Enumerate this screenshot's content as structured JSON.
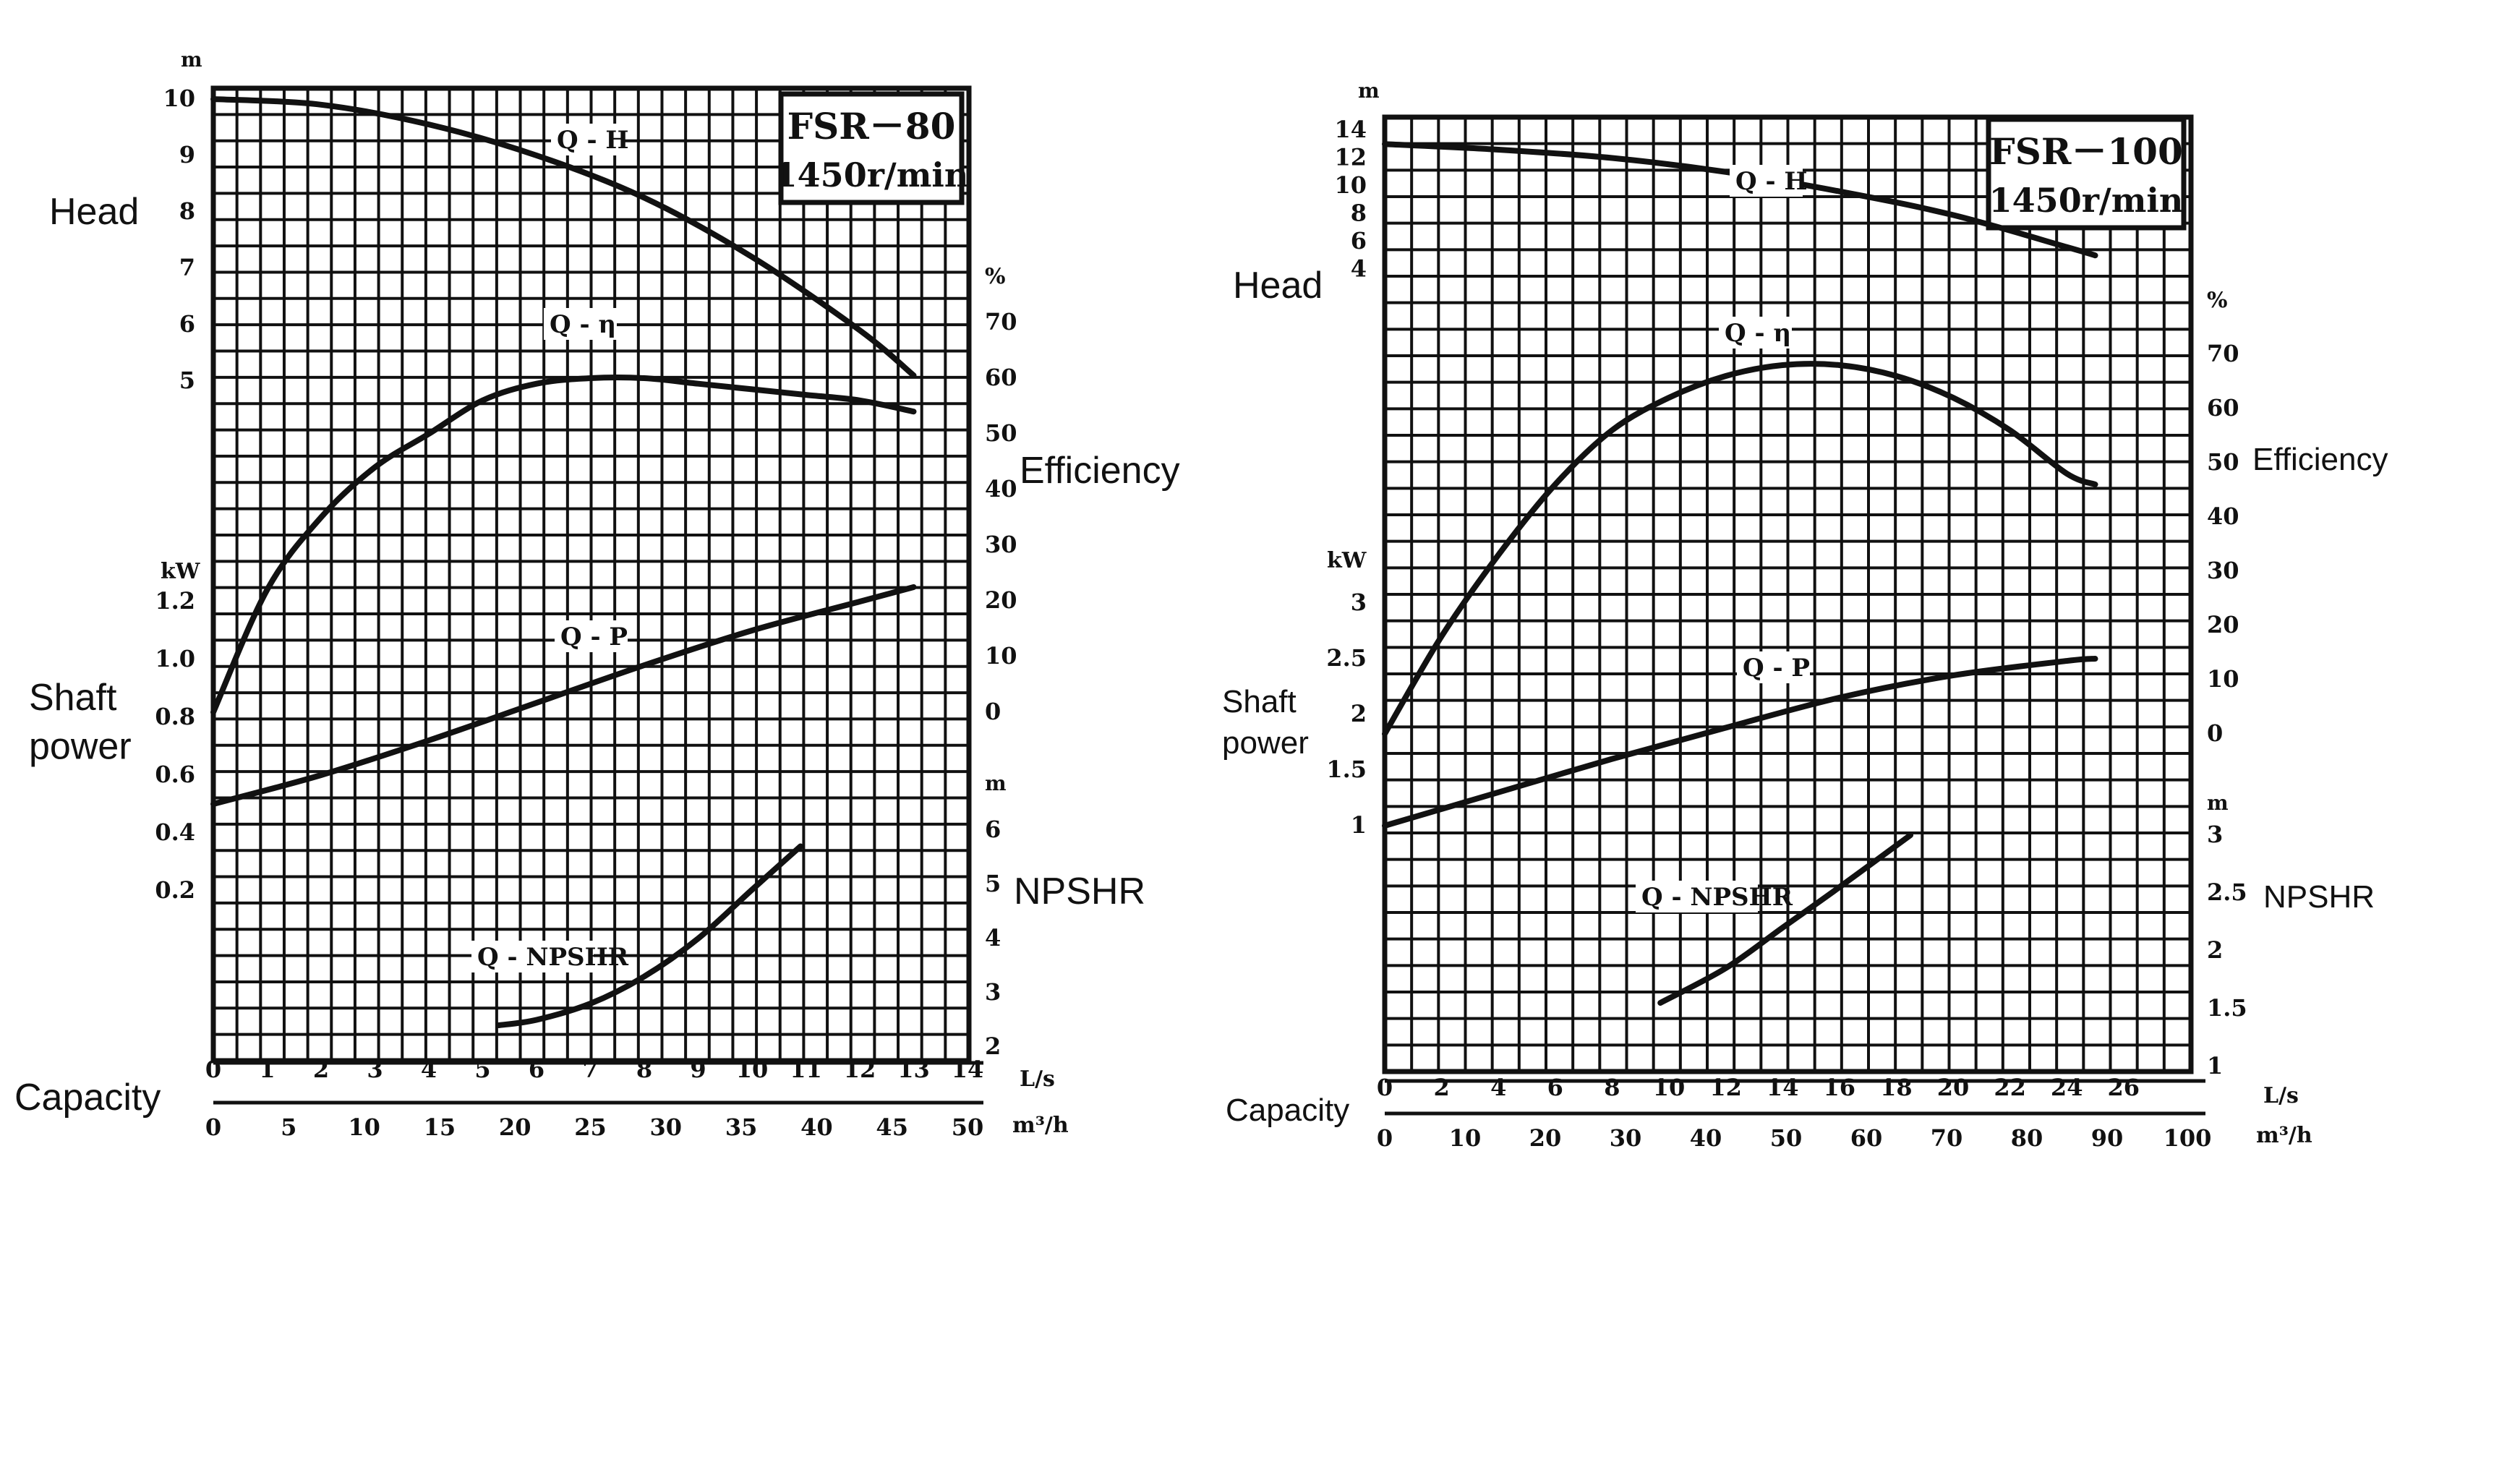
{
  "figure": {
    "background": "#ffffff",
    "ink": "#111111"
  },
  "chart_data": [
    {
      "type": "line",
      "model": "FSR－80",
      "speed": "1450r/min",
      "side_labels": {
        "head": "Head",
        "efficiency": "Efficiency",
        "shaft_power": "Shaft\npower",
        "npshr": "NPSHR",
        "capacity": "Capacity"
      },
      "units": {
        "head": "m",
        "power": "kW",
        "efficiency": "%",
        "npshr": "m",
        "flow_ls": "L/s",
        "flow_m3h": "m³/h"
      },
      "axes": {
        "x_ls": {
          "range": [
            0,
            14
          ],
          "ticks": [
            "0",
            "1",
            "2",
            "3",
            "4",
            "5",
            "6",
            "7",
            "8",
            "9",
            "10",
            "11",
            "12",
            "13",
            "14"
          ]
        },
        "x_m3h": {
          "ticks": [
            "0",
            "5",
            "10",
            "15",
            "20",
            "25",
            "30",
            "35",
            "40",
            "45",
            "50"
          ]
        },
        "head": {
          "ticks": [
            "10",
            "9",
            "8",
            "7",
            "6",
            "5"
          ]
        },
        "power": {
          "ticks": [
            "1.2",
            "1.0",
            "0.8",
            "0.6",
            "0.4",
            "0.2"
          ]
        },
        "efficiency": {
          "ticks": [
            "70",
            "60",
            "50",
            "40",
            "30",
            "20",
            "10",
            "0"
          ]
        },
        "npshr": {
          "ticks": [
            "6",
            "5",
            "4",
            "3",
            "2"
          ]
        }
      },
      "series": [
        {
          "name": "Q - H",
          "unit": "m",
          "points": [
            [
              0,
              10
            ],
            [
              2,
              9.9
            ],
            [
              4,
              9.55
            ],
            [
              6,
              9.0
            ],
            [
              8,
              8.25
            ],
            [
              10,
              7.2
            ],
            [
              12,
              5.9
            ],
            [
              13,
              5.1
            ]
          ]
        },
        {
          "name": "Q - η",
          "unit": "%",
          "points": [
            [
              0,
              0
            ],
            [
              1,
              22
            ],
            [
              2,
              35
            ],
            [
              3,
              44
            ],
            [
              4,
              50
            ],
            [
              5,
              56
            ],
            [
              6,
              59
            ],
            [
              7,
              60
            ],
            [
              8,
              60
            ],
            [
              9,
              59
            ],
            [
              10,
              58
            ],
            [
              11,
              57
            ],
            [
              12,
              56
            ],
            [
              13,
              54
            ]
          ]
        },
        {
          "name": "Q - P",
          "unit": "kW",
          "points": [
            [
              0,
              0.5
            ],
            [
              2,
              0.6
            ],
            [
              4,
              0.72
            ],
            [
              6,
              0.85
            ],
            [
              8,
              0.98
            ],
            [
              10,
              1.1
            ],
            [
              12,
              1.2
            ],
            [
              13,
              1.25
            ]
          ]
        },
        {
          "name": "Q - NPSHR",
          "unit": "m",
          "points": [
            [
              5.3,
              2.4
            ],
            [
              6,
              2.5
            ],
            [
              7,
              2.8
            ],
            [
              8,
              3.3
            ],
            [
              9,
              4.0
            ],
            [
              10,
              4.9
            ],
            [
              10.9,
              5.7
            ]
          ]
        }
      ]
    },
    {
      "type": "line",
      "model": "FSR－100",
      "speed": "1450r/min",
      "side_labels": {
        "head": "Head",
        "efficiency": "Efficiency",
        "shaft_power": "Shaft\npower",
        "npshr": "NPSHR",
        "capacity": "Capacity"
      },
      "units": {
        "head": "m",
        "power": "kW",
        "efficiency": "%",
        "npshr": "m",
        "flow_ls": "L/s",
        "flow_m3h": "m³/h"
      },
      "axes": {
        "x_ls": {
          "range": [
            0,
            26
          ],
          "ticks": [
            "0",
            "2",
            "4",
            "6",
            "8",
            "10",
            "12",
            "14",
            "16",
            "18",
            "20",
            "22",
            "24",
            "26"
          ]
        },
        "x_m3h": {
          "ticks": [
            "0",
            "10",
            "20",
            "30",
            "40",
            "50",
            "60",
            "70",
            "80",
            "90",
            "100"
          ]
        },
        "head": {
          "ticks": [
            "14",
            "12",
            "10",
            "8",
            "6",
            "4"
          ]
        },
        "power": {
          "ticks": [
            "3",
            "2.5",
            "2",
            "1.5",
            "1"
          ]
        },
        "efficiency": {
          "ticks": [
            "70",
            "60",
            "50",
            "40",
            "30",
            "20",
            "10",
            "0"
          ]
        },
        "npshr": {
          "ticks": [
            "3",
            "2.5",
            "2",
            "1.5",
            "1"
          ]
        }
      },
      "series": [
        {
          "name": "Q - H",
          "unit": "m",
          "points": [
            [
              0,
              13
            ],
            [
              4,
              12.6
            ],
            [
              8,
              12
            ],
            [
              12,
              11
            ],
            [
              16,
              9.6
            ],
            [
              20,
              7.9
            ],
            [
              24,
              5.6
            ],
            [
              25,
              5
            ]
          ]
        },
        {
          "name": "Q - η",
          "unit": "%",
          "points": [
            [
              0,
              0
            ],
            [
              2,
              18
            ],
            [
              4,
              33
            ],
            [
              6,
              46
            ],
            [
              8,
              56
            ],
            [
              10,
              62
            ],
            [
              12,
              66
            ],
            [
              14,
              68
            ],
            [
              16,
              68
            ],
            [
              18,
              66
            ],
            [
              20,
              62
            ],
            [
              22,
              56
            ],
            [
              24,
              48
            ],
            [
              25,
              46
            ]
          ]
        },
        {
          "name": "Q - P",
          "unit": "kW",
          "points": [
            [
              0,
              1
            ],
            [
              4,
              1.3
            ],
            [
              8,
              1.6
            ],
            [
              12,
              1.88
            ],
            [
              16,
              2.15
            ],
            [
              20,
              2.35
            ],
            [
              24,
              2.48
            ],
            [
              25,
              2.5
            ]
          ]
        },
        {
          "name": "Q - NPSHR",
          "unit": "m",
          "points": [
            [
              9.7,
              1.55
            ],
            [
              12,
              1.85
            ],
            [
              14,
              2.2
            ],
            [
              16,
              2.55
            ],
            [
              18.5,
              3.0
            ]
          ]
        }
      ]
    }
  ]
}
